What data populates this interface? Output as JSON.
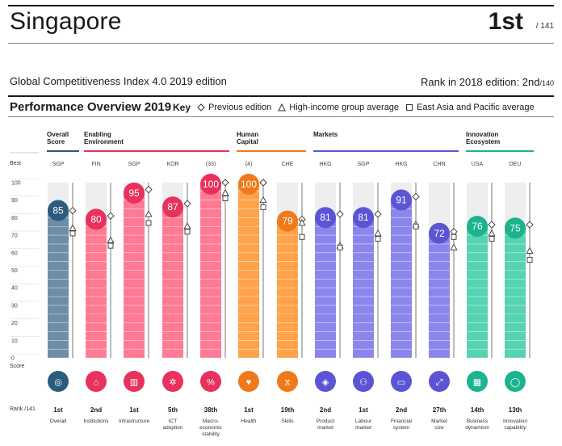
{
  "header": {
    "country": "Singapore",
    "rank": "1st",
    "rank_of": "/ 141",
    "edition": "Global Competitiveness Index 4.0 2019 edition",
    "rank_2018_label": "Rank in 2018 edition: ",
    "rank_2018_value": "2nd",
    "rank_2018_of": "/140"
  },
  "overview": {
    "title": "Performance Overview 2019",
    "key_label": "Key",
    "legend": [
      {
        "symbol": "diamond",
        "label": "Previous edition"
      },
      {
        "symbol": "triangle",
        "label": "High-income group average"
      },
      {
        "symbol": "square",
        "label": "East Asia and Pacific average"
      }
    ]
  },
  "axis_labels": {
    "best": "Best",
    "score": "Score",
    "rank": "Rank /141"
  },
  "pillar_groups": [
    {
      "label": "Overall\nScore",
      "color": "#2b5c7e"
    },
    {
      "label": "Enabling\nEnvironment",
      "color": "#e8315c"
    },
    {
      "label": "Human\nCapital",
      "color": "#f07a1b"
    },
    {
      "label": "Markets",
      "color": "#5b55d6"
    },
    {
      "label": "Innovation\nEcosystem",
      "color": "#1cb38f"
    }
  ],
  "chart_data": {
    "type": "bar",
    "ylim": [
      0,
      100
    ],
    "yticks": [
      0,
      10,
      20,
      30,
      40,
      50,
      60,
      70,
      80,
      90,
      100
    ],
    "bars": [
      {
        "name": "Overall",
        "rank": "1st",
        "score": 85,
        "best": "SGP",
        "previous": 84,
        "high_income": 74,
        "east_asia": 71,
        "group": 0,
        "icon": "medal-icon"
      },
      {
        "name": "Institutions",
        "rank": "2nd",
        "score": 80,
        "best": "FIN",
        "previous": 81,
        "high_income": 67,
        "east_asia": 64,
        "group": 1,
        "icon": "institution-icon"
      },
      {
        "name": "Infrastructure",
        "rank": "1st",
        "score": 95,
        "best": "SGP",
        "previous": 96,
        "high_income": 82,
        "east_asia": 77,
        "group": 1,
        "icon": "road-icon"
      },
      {
        "name": "ICT\nadoption",
        "rank": "5th",
        "score": 87,
        "best": "KOR",
        "previous": 88,
        "high_income": 75,
        "east_asia": 72,
        "group": 1,
        "icon": "chip-icon"
      },
      {
        "name": "Macro-\neconomic\nstability",
        "rank": "38th",
        "score": 100,
        "best": "(33)",
        "previous": 100,
        "high_income": 94,
        "east_asia": 91,
        "group": 1,
        "icon": "percent-icon"
      },
      {
        "name": "Health",
        "rank": "1st",
        "score": 100,
        "best": "(4)",
        "previous": 100,
        "high_income": 90,
        "east_asia": 86,
        "group": 2,
        "icon": "heart-icon"
      },
      {
        "name": "Skills",
        "rank": "19th",
        "score": 79,
        "best": "CHE",
        "previous": 79,
        "high_income": 77,
        "east_asia": 69,
        "group": 2,
        "icon": "hourglass-icon"
      },
      {
        "name": "Product\nmarket",
        "rank": "2nd",
        "score": 81,
        "best": "HKG",
        "previous": 82,
        "high_income": 64,
        "east_asia": 63,
        "group": 3,
        "icon": "tag-icon"
      },
      {
        "name": "Labour\nmarket",
        "rank": "1st",
        "score": 81,
        "best": "SGP",
        "previous": 82,
        "high_income": 71,
        "east_asia": 68,
        "group": 3,
        "icon": "people-icon"
      },
      {
        "name": "Financial\nsystem",
        "rank": "2nd",
        "score": 91,
        "best": "HKG",
        "previous": 92,
        "high_income": 76,
        "east_asia": 75,
        "group": 3,
        "icon": "card-icon"
      },
      {
        "name": "Market\nsize",
        "rank": "27th",
        "score": 72,
        "best": "CHN",
        "previous": 72,
        "high_income": 63,
        "east_asia": 69,
        "group": 3,
        "icon": "expand-icon"
      },
      {
        "name": "Business\ndynamism",
        "rank": "14th",
        "score": 76,
        "best": "USA",
        "previous": 76,
        "high_income": 71,
        "east_asia": 68,
        "group": 4,
        "icon": "building-icon"
      },
      {
        "name": "Innovation\ncapability",
        "rank": "13th",
        "score": 75,
        "best": "DEU",
        "previous": 76,
        "high_income": 61,
        "east_asia": 56,
        "group": 4,
        "icon": "bulb-icon"
      }
    ]
  }
}
